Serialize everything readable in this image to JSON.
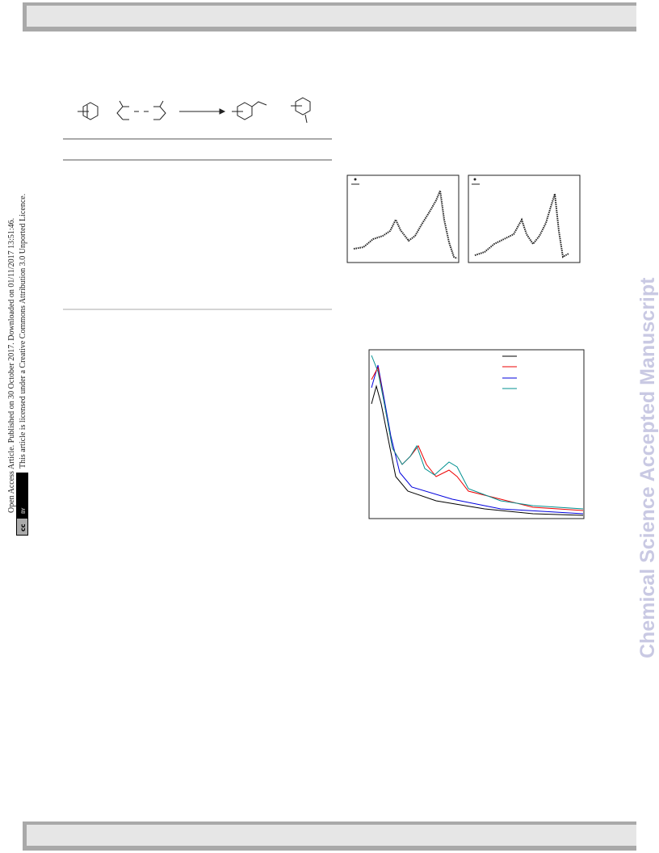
{
  "watermark": "Chemical Science Accepted Manuscript",
  "license": {
    "line1": "Open Access Article. Published on 30 October 2017. Downloaded on 01/11/2017 13:51:46.",
    "line2": "This article is licensed under a Creative Commons Attribution 3.0 Unported Licence.",
    "cc": "cc",
    "by": "BY"
  }
}
